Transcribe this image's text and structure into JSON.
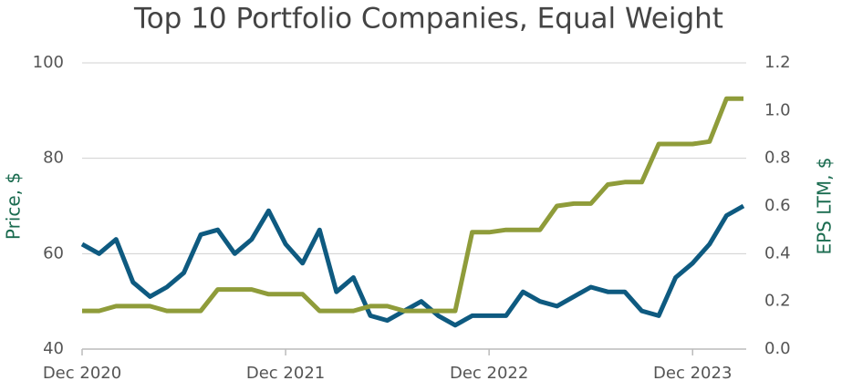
{
  "chart_data": {
    "type": "line",
    "title": "Top 10 Portfolio Companies, Equal Weight",
    "y_label": "Price, $",
    "y2_label": "EPS LTM, $",
    "x": [
      "Dec 2020",
      "Jan 2021",
      "Feb 2021",
      "Mar 2021",
      "Apr 2021",
      "May 2021",
      "Jun 2021",
      "Jul 2021",
      "Aug 2021",
      "Sep 2021",
      "Oct 2021",
      "Nov 2021",
      "Dec 2021",
      "Jan 2022",
      "Feb 2022",
      "Mar 2022",
      "Apr 2022",
      "May 2022",
      "Jun 2022",
      "Jul 2022",
      "Aug 2022",
      "Sep 2022",
      "Oct 2022",
      "Nov 2022",
      "Dec 2022",
      "Jan 2023",
      "Feb 2023",
      "Mar 2023",
      "Apr 2023",
      "May 2023",
      "Jun 2023",
      "Jul 2023",
      "Aug 2023",
      "Sep 2023",
      "Oct 2023",
      "Nov 2023",
      "Dec 2023",
      "Jan 2024",
      "Feb 2024",
      "Mar 2024"
    ],
    "xticks": [
      "Dec 2020",
      "Dec 2021",
      "Dec 2022",
      "Dec 2023"
    ],
    "series": [
      {
        "name": "Price",
        "color": "#0e5a80",
        "axis": "y",
        "values": [
          62,
          60,
          63,
          54,
          51,
          53,
          56,
          64,
          65,
          60,
          63,
          69,
          62,
          58,
          65,
          52,
          55,
          47,
          46,
          48,
          50,
          47,
          45,
          47,
          47,
          47,
          52,
          50,
          49,
          51,
          53,
          52,
          52,
          48,
          47,
          55,
          58,
          62,
          68,
          70
        ]
      },
      {
        "name": "EPS LTM",
        "color": "#8f9c3a",
        "axis": "y2",
        "values": [
          0.16,
          0.16,
          0.18,
          0.18,
          0.18,
          0.16,
          0.16,
          0.16,
          0.25,
          0.25,
          0.25,
          0.23,
          0.23,
          0.23,
          0.16,
          0.16,
          0.16,
          0.18,
          0.18,
          0.16,
          0.16,
          0.16,
          0.16,
          0.49,
          0.49,
          0.5,
          0.5,
          0.5,
          0.6,
          0.61,
          0.61,
          0.69,
          0.7,
          0.7,
          0.86,
          0.86,
          0.86,
          0.87,
          1.05,
          1.05
        ]
      }
    ],
    "ylim": [
      40,
      100
    ],
    "yticks": [
      40,
      60,
      80,
      100
    ],
    "y2lim": [
      0,
      1.2
    ],
    "y2ticks": [
      {
        "value": 0,
        "label": "0.0"
      },
      0.2,
      0.4,
      0.6,
      0.8,
      {
        "value": 1,
        "label": "1.0"
      },
      1.2
    ],
    "grid": true
  }
}
